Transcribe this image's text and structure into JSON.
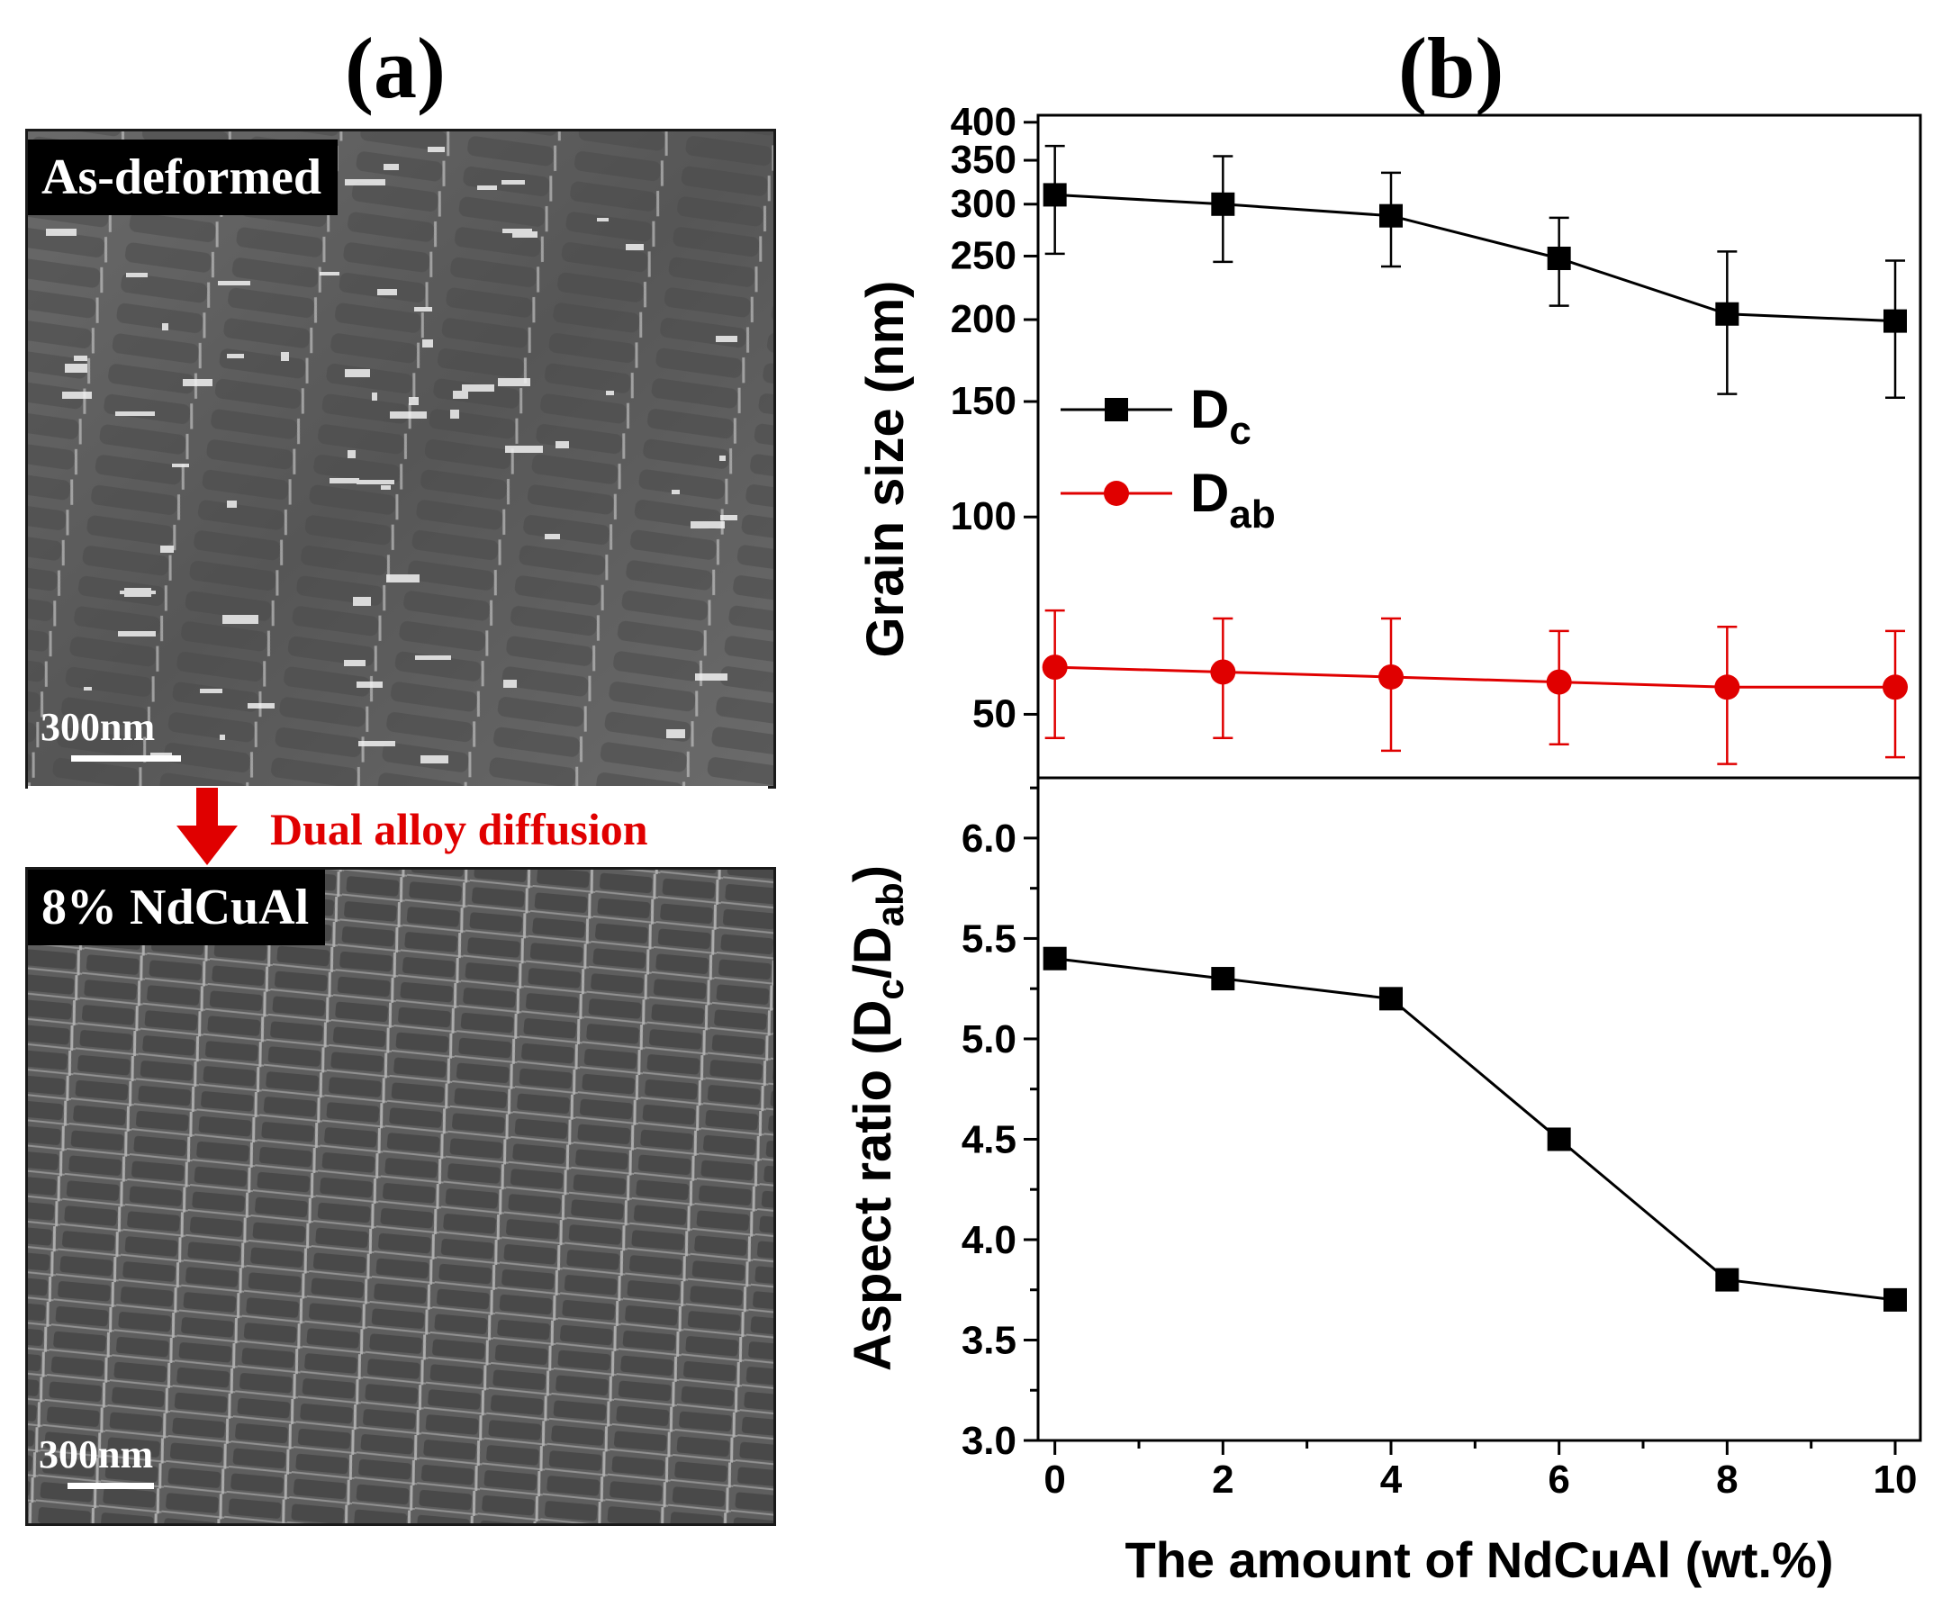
{
  "panels": {
    "a_label": "(a)",
    "b_label": "(b)"
  },
  "sem_top": {
    "tag": "As-deformed",
    "scale": "300nm"
  },
  "sem_bottom": {
    "tag": "8% NdCuAl",
    "scale": "300nm"
  },
  "transition": {
    "text": "Dual alloy diffusion",
    "arrow_color": "#e00000"
  },
  "chart_data": [
    {
      "type": "line",
      "ylabel": "Grain size (nm)",
      "yscale": "log",
      "ylim": [
        40,
        410
      ],
      "yticks": [
        50,
        100,
        150,
        200,
        250,
        300,
        350,
        400
      ],
      "xlim": [
        -0.2,
        10.3
      ],
      "x": [
        0,
        2,
        4,
        6,
        8,
        10
      ],
      "legend": {
        "position": "middle-left",
        "entries": [
          "Dc",
          "Dab"
        ]
      },
      "series": [
        {
          "name": "Dc",
          "label_main": "D",
          "label_sub": "c",
          "color": "#000000",
          "marker": "square",
          "values": [
            310,
            300,
            288,
            248,
            204,
            199
          ],
          "err": [
            58,
            55,
            47,
            38,
            50,
            47
          ]
        },
        {
          "name": "Dab",
          "label_main": "D",
          "label_sub": "ab",
          "color": "#e00000",
          "marker": "circle",
          "values": [
            59,
            58,
            57,
            56,
            55,
            55
          ],
          "err": [
            13,
            12,
            13,
            11,
            13,
            12
          ]
        }
      ]
    },
    {
      "type": "line",
      "ylabel_main": "Aspect ratio (D",
      "ylabel_sub1": "c",
      "ylabel_mid": "/D",
      "ylabel_sub2": "ab",
      "ylabel_end": ")",
      "xlabel": "The amount of NdCuAl (wt.%)",
      "ylim": [
        3.0,
        6.3
      ],
      "yticks": [
        "3.0",
        "3.5",
        "4.0",
        "4.5",
        "5.0",
        "5.5",
        "6.0"
      ],
      "xlim": [
        -0.2,
        10.3
      ],
      "xticks": [
        "0",
        "2",
        "4",
        "6",
        "8",
        "10"
      ],
      "series": [
        {
          "name": "Dc/Dab",
          "color": "#000000",
          "marker": "square",
          "x": [
            0,
            2,
            4,
            6,
            8,
            10
          ],
          "values": [
            5.4,
            5.3,
            5.2,
            4.5,
            3.8,
            3.7
          ]
        }
      ]
    }
  ]
}
